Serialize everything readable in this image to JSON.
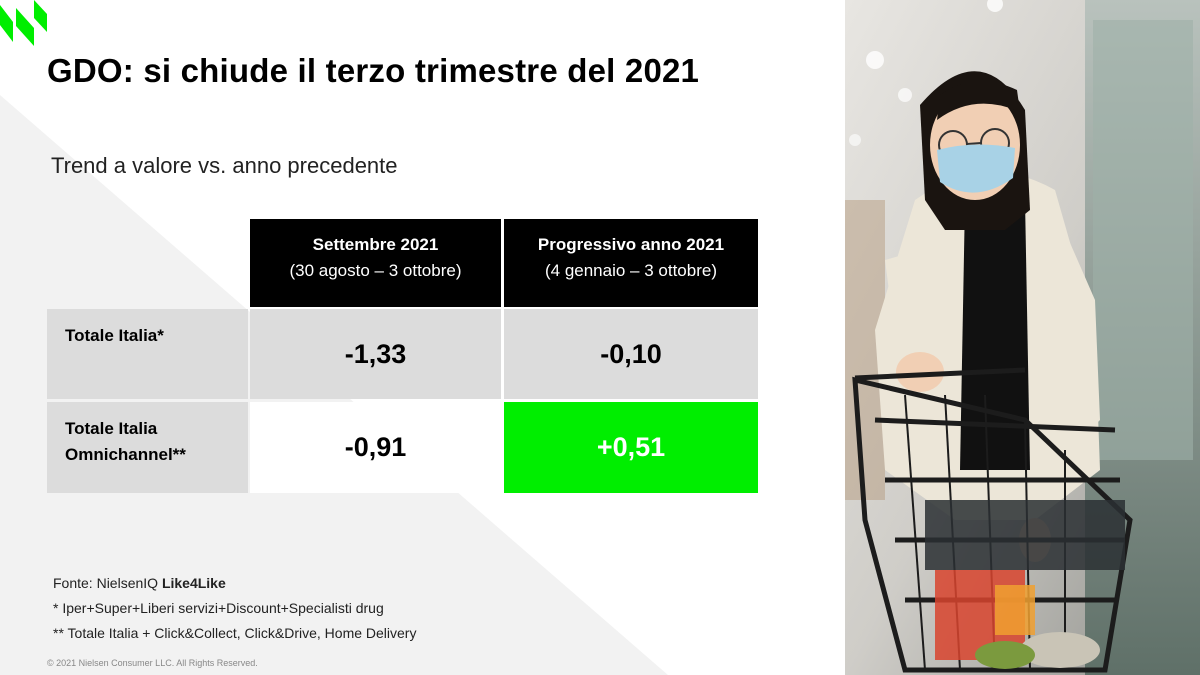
{
  "title": "GDO: si chiude il terzo trimestre del 2021",
  "subtitle": "Trend a valore vs. anno precedente",
  "table": {
    "columns": [
      {
        "title": "Settembre 2021",
        "period": "(30 agosto – 3 ottobre)"
      },
      {
        "title": "Progressivo anno 2021",
        "period": "(4 gennaio – 3 ottobre)"
      }
    ],
    "rows": [
      {
        "label_line1": "Totale Italia*",
        "label_line2": "",
        "values": [
          "-1,33",
          "-0,10"
        ]
      },
      {
        "label_line1": "Totale Italia",
        "label_line2": "Omnichannel**",
        "values": [
          "-0,91",
          "+0,51"
        ]
      }
    ],
    "highlight_color": "#00ee00"
  },
  "footer": {
    "source_prefix": "Fonte: NielsenIQ ",
    "source_bold": "Like4Like",
    "note1": "* Iper+Super+Liberi servizi+Discount+Specialisti drug",
    "note2": "** Totale Italia + Click&Collect, Click&Drive, Home Delivery"
  },
  "copyright": "© 2021 Nielsen Consumer LLC. All Rights Reserved.",
  "brand": {
    "accent": "#00ee00"
  }
}
